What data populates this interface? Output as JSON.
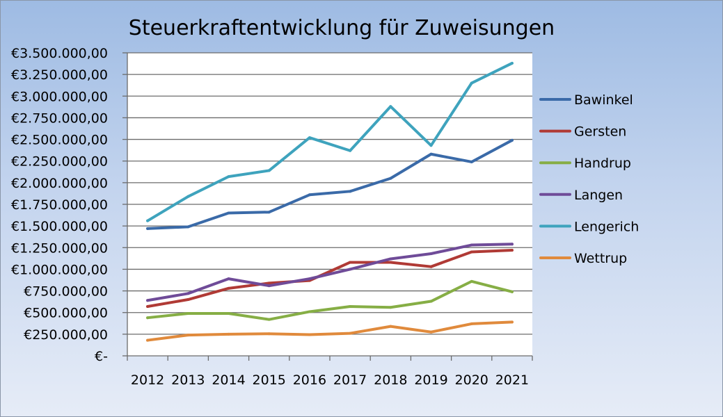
{
  "chart_data": {
    "type": "line",
    "title": "Steuerkraftentwicklung für Zuweisungen",
    "xlabel": "",
    "ylabel": "",
    "categories": [
      "2012",
      "2013",
      "2014",
      "2015",
      "2016",
      "2017",
      "2018",
      "2019",
      "2020",
      "2021"
    ],
    "ylim": [
      0,
      3500000
    ],
    "y_ticks": [
      {
        "value": 0,
        "label": "€-"
      },
      {
        "value": 250000,
        "label": "€250.000,00"
      },
      {
        "value": 500000,
        "label": "€500.000,00"
      },
      {
        "value": 750000,
        "label": "€750.000,00"
      },
      {
        "value": 1000000,
        "label": "€1.000.000,00"
      },
      {
        "value": 1250000,
        "label": "€1.250.000,00"
      },
      {
        "value": 1500000,
        "label": "€1.500.000,00"
      },
      {
        "value": 1750000,
        "label": "€1.750.000,00"
      },
      {
        "value": 2000000,
        "label": "€2.000.000,00"
      },
      {
        "value": 2250000,
        "label": "€2.250.000,00"
      },
      {
        "value": 2500000,
        "label": "€2.500.000,00"
      },
      {
        "value": 2750000,
        "label": "€2.750.000,00"
      },
      {
        "value": 3000000,
        "label": "€3.000.000,00"
      },
      {
        "value": 3250000,
        "label": "€3.250.000,00"
      },
      {
        "value": 3500000,
        "label": "€3.500.000,00"
      }
    ],
    "grid": true,
    "legend_position": "right",
    "series": [
      {
        "name": "Bawinkel",
        "color": "#3a6aa8",
        "values": [
          1470000,
          1490000,
          1650000,
          1660000,
          1860000,
          1900000,
          2050000,
          2330000,
          2240000,
          2490000
        ]
      },
      {
        "name": "Gersten",
        "color": "#b03a35",
        "values": [
          570000,
          650000,
          780000,
          840000,
          870000,
          1080000,
          1080000,
          1030000,
          1200000,
          1220000
        ]
      },
      {
        "name": "Handrup",
        "color": "#86ae45",
        "values": [
          440000,
          490000,
          490000,
          420000,
          510000,
          570000,
          560000,
          630000,
          860000,
          740000
        ]
      },
      {
        "name": "Langen",
        "color": "#6f4b98",
        "values": [
          640000,
          720000,
          890000,
          810000,
          890000,
          1000000,
          1120000,
          1180000,
          1280000,
          1290000
        ]
      },
      {
        "name": "Lengerich",
        "color": "#3ea3bd",
        "values": [
          1560000,
          1840000,
          2070000,
          2140000,
          2520000,
          2370000,
          2880000,
          2430000,
          3150000,
          3380000
        ]
      },
      {
        "name": "Wettrup",
        "color": "#e08a3c",
        "values": [
          180000,
          240000,
          250000,
          255000,
          245000,
          260000,
          340000,
          275000,
          370000,
          390000
        ]
      }
    ]
  }
}
